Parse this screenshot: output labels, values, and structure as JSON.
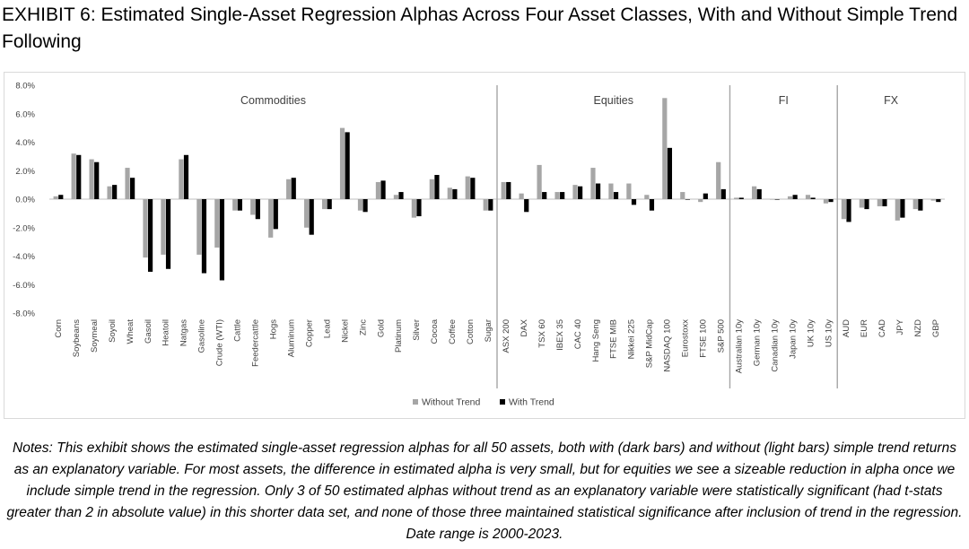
{
  "title": "EXHIBIT 6: Estimated Single-Asset Regression Alphas Across Four Asset Classes, With and Without Simple Trend Following",
  "notes": "Notes: This exhibit shows the estimated single-asset regression alphas for all 50 assets, both with (dark bars) and without (light bars) simple trend returns as an explanatory variable. For most assets, the difference in estimated alpha is very small, but for equities we see a sizeable reduction in alpha once we include simple trend in the regression. Only 3 of 50 estimated alphas without trend as an explanatory variable were statistically significant (had t-stats greater than 2 in absolute value) in this shorter data set, and none of those three maintained statistical significance after inclusion of trend in the regression. Date range is 2000-2023.",
  "chart_data": {
    "type": "bar",
    "ylim": [
      -8.0,
      8.0
    ],
    "yticks": [
      "8.0%",
      "6.0%",
      "4.0%",
      "2.0%",
      "0.0%",
      "-2.0%",
      "-4.0%",
      "-6.0%",
      "-8.0%"
    ],
    "ytick_values": [
      8,
      6,
      4,
      2,
      0,
      -2,
      -4,
      -6,
      -8
    ],
    "grid": false,
    "legend_position": "bottom",
    "categories": [
      "Corn",
      "Soybeans",
      "Soymeal",
      "Soyoil",
      "Wheat",
      "Gasoil",
      "Heatoil",
      "Natgas",
      "Gasoline",
      "Crude (WTI)",
      "Cattle",
      "Feedercattle",
      "Hogs",
      "Aluminum",
      "Copper",
      "Lead",
      "Nickel",
      "Zinc",
      "Gold",
      "Platinum",
      "Silver",
      "Cocoa",
      "Coffee",
      "Cotton",
      "Sugar",
      "ASX 200",
      "DAX",
      "TSX 60",
      "IBEX 35",
      "CAC 40",
      "Hang Seng",
      "FTSE MIB",
      "Nikkei 225",
      "S&P MidCap",
      "NASDAQ 100",
      "Eurostoxx",
      "FTSE 100",
      "S&P 500",
      "Australian 10y",
      "German 10y",
      "Canadian 10y",
      "Japan 10y",
      "UK 10y",
      "US 10y",
      "AUD",
      "EUR",
      "CAD",
      "JPY",
      "NZD",
      "GBP"
    ],
    "groups": [
      {
        "label": "Commodities",
        "count": 25
      },
      {
        "label": "Equities",
        "count": 13
      },
      {
        "label": "FI",
        "count": 6
      },
      {
        "label": "FX",
        "count": 6
      }
    ],
    "series": [
      {
        "name": "Without Trend",
        "color": "#a6a6a6",
        "values": [
          0.2,
          3.2,
          2.8,
          0.9,
          2.2,
          -4.1,
          -3.9,
          2.8,
          -3.9,
          -3.4,
          -0.8,
          -1.1,
          -2.7,
          1.4,
          -2.0,
          -0.7,
          5.0,
          -0.8,
          1.2,
          0.3,
          -1.3,
          1.4,
          0.8,
          1.6,
          -0.8,
          1.2,
          0.4,
          2.4,
          0.5,
          1.0,
          2.2,
          1.1,
          1.1,
          0.3,
          7.1,
          0.5,
          -0.2,
          2.6,
          0.1,
          0.9,
          0.0,
          0.2,
          0.3,
          -0.3,
          -1.4,
          -0.6,
          -0.5,
          -1.5,
          -0.7,
          -0.1
        ]
      },
      {
        "name": "With Trend",
        "color": "#000000",
        "values": [
          0.3,
          3.1,
          2.6,
          1.0,
          1.5,
          -5.1,
          -4.9,
          3.1,
          -5.2,
          -5.7,
          -0.8,
          -1.4,
          -2.1,
          1.5,
          -2.5,
          -0.7,
          4.7,
          -0.9,
          1.3,
          0.5,
          -1.2,
          1.7,
          0.7,
          1.5,
          -0.8,
          1.2,
          -0.9,
          0.5,
          0.5,
          0.9,
          1.1,
          0.5,
          -0.4,
          -0.8,
          3.6,
          0.0,
          0.4,
          0.7,
          0.1,
          0.7,
          0.0,
          0.3,
          0.1,
          -0.2,
          -1.6,
          -0.7,
          -0.5,
          -1.3,
          -0.8,
          -0.2
        ]
      }
    ]
  }
}
